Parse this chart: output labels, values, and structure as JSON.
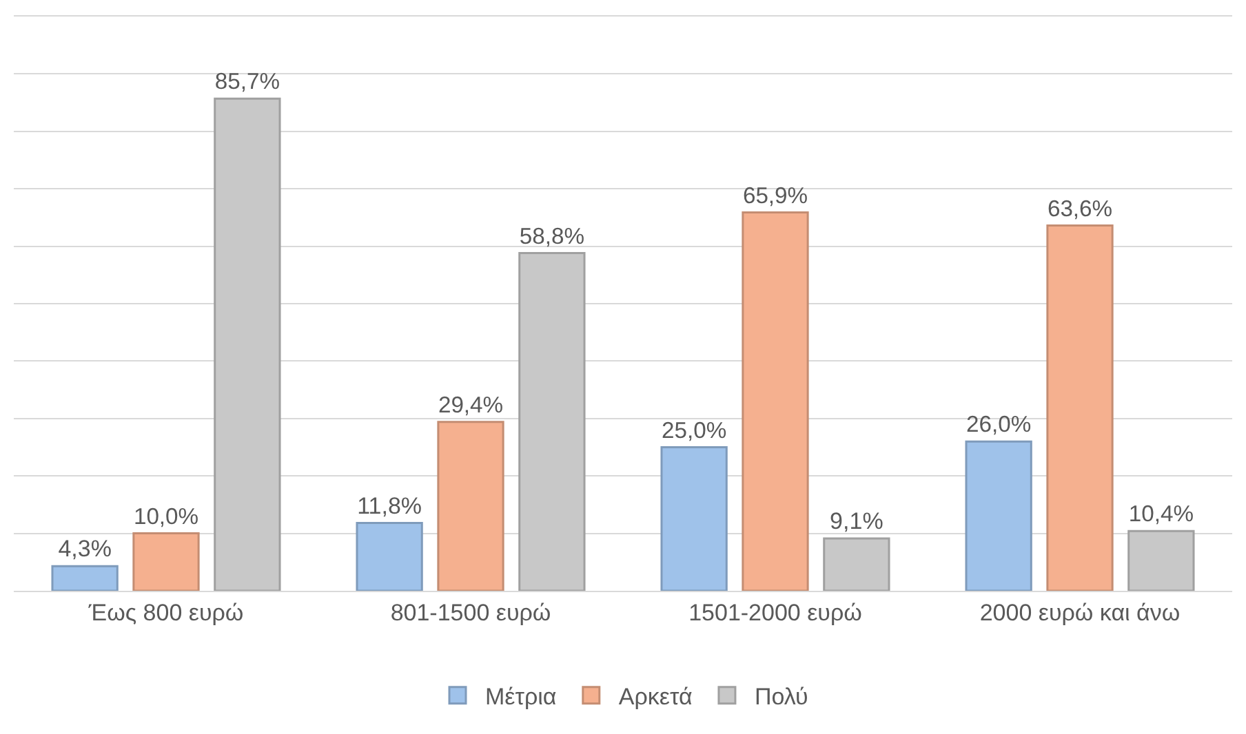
{
  "chart_data": {
    "type": "bar",
    "categories": [
      "Έως 800 ευρώ",
      "801-1500 ευρώ",
      "1501-2000 ευρώ",
      "2000 ευρώ και άνω"
    ],
    "series": [
      {
        "name": "Μέτρια",
        "color": "#9fc2ea",
        "values": [
          4.3,
          11.8,
          25.0,
          26.0
        ],
        "value_labels": [
          "4,3%",
          "11,8%",
          "25,0%",
          "26,0%"
        ]
      },
      {
        "name": "Αρκετά",
        "color": "#f5b08f",
        "values": [
          10.0,
          29.4,
          65.9,
          63.6
        ],
        "value_labels": [
          "10,0%",
          "29,4%",
          "65,9%",
          "63,6%"
        ]
      },
      {
        "name": "Πολύ",
        "color": "#c8c8c8",
        "values": [
          85.7,
          58.8,
          9.1,
          10.4
        ],
        "value_labels": [
          "85,7%",
          "58,8%",
          "9,1%",
          "10,4%"
        ]
      }
    ],
    "ylim": [
      0,
      100
    ],
    "yticks": [
      {
        "value": 0,
        "label": null
      },
      {
        "value": 10,
        "label": null
      },
      {
        "value": 20,
        "label": null
      },
      {
        "value": 30,
        "label": null
      },
      {
        "value": 40,
        "label": null
      },
      {
        "value": 50,
        "label": null
      },
      {
        "value": 60,
        "label": null
      },
      {
        "value": 70,
        "label": null
      },
      {
        "value": 80,
        "label": null
      },
      {
        "value": 90,
        "label": null
      },
      {
        "value": 100,
        "label": null
      }
    ],
    "tick_labels": "x",
    "grid": "y",
    "legend": "bottom"
  }
}
